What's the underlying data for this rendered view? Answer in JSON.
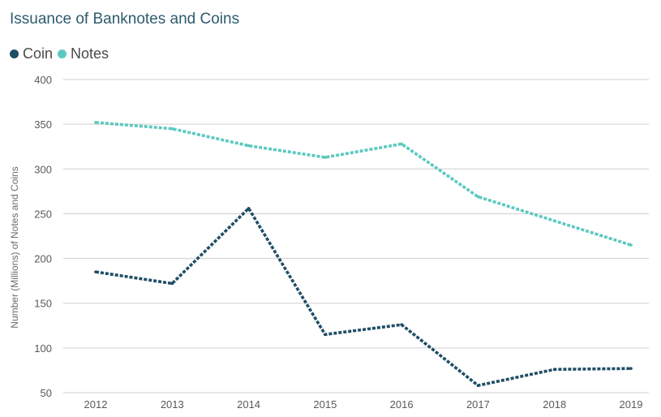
{
  "chart_data": {
    "type": "line",
    "title": "Issuance of Banknotes and Coins",
    "xlabel": "",
    "ylabel": "Number (Millions) of Notes and Coins",
    "categories": [
      "2012",
      "2013",
      "2014",
      "2015",
      "2016",
      "2017",
      "2018",
      "2019"
    ],
    "y_ticks": [
      "50",
      "100",
      "150",
      "200",
      "250",
      "300",
      "350",
      "400"
    ],
    "ylim": [
      50,
      400
    ],
    "grid": true,
    "legend_position": "top-left",
    "line_style": "dashed",
    "series": [
      {
        "name": "Coin",
        "color": "#1f4e66",
        "values": [
          185,
          172,
          256,
          115,
          126,
          58,
          76,
          77
        ]
      },
      {
        "name": "Notes",
        "color": "#5cc9c0",
        "values": [
          352,
          345,
          326,
          313,
          328,
          269,
          242,
          215
        ]
      }
    ]
  }
}
